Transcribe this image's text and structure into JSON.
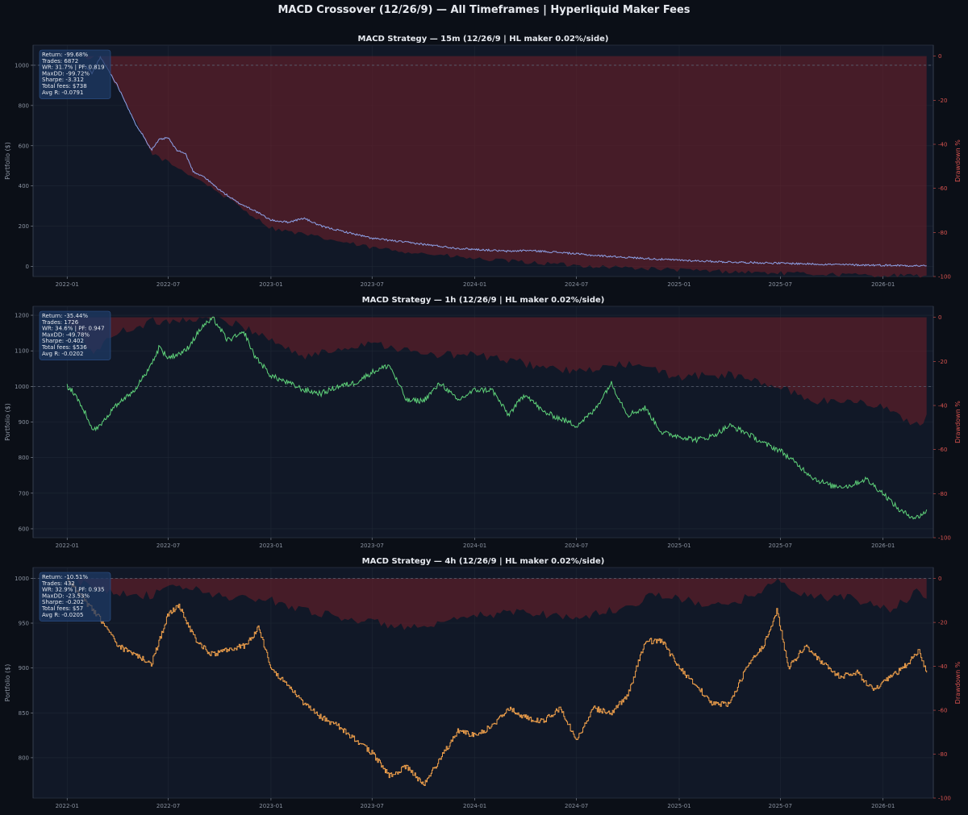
{
  "figure": {
    "title": "MACD Crossover (12/26/9) — All Timeframes | Hyperliquid Maker Fees",
    "background": "#0b0f17",
    "panel_bg": "#111827",
    "drawdown_color": "#6b1f2a"
  },
  "chart_data": [
    {
      "type": "line",
      "title": "MACD Strategy — 15m  (12/26/9 | HL maker 0.02%/side)",
      "ylabel": "Portfolio ($)",
      "ylabel_right": "Drawdown %",
      "ylim": [
        -50,
        1100
      ],
      "ylim_right": [
        -100,
        5
      ],
      "yticks": [
        0,
        200,
        400,
        600,
        800,
        1000
      ],
      "yticks_right": [
        0,
        -20,
        -40,
        -60,
        -80,
        -100
      ],
      "xticks": [
        "2022-01",
        "2022-07",
        "2023-01",
        "2023-07",
        "2024-01",
        "2024-07",
        "2025-01",
        "2025-07",
        "2026-01"
      ],
      "x_range": [
        "2021-11",
        "2026-04"
      ],
      "baseline": 1000,
      "color": "#8ea2e8",
      "series": [
        {
          "x": [
            "2022-02-01",
            "2022-02-15",
            "2022-03-01",
            "2022-03-15",
            "2022-04-01",
            "2022-04-15",
            "2022-05-01",
            "2022-05-15",
            "2022-06-01",
            "2022-06-15",
            "2022-07-01",
            "2022-07-15",
            "2022-08-01",
            "2022-08-15",
            "2022-09-01",
            "2022-10-01",
            "2022-11-01",
            "2022-12-01",
            "2023-01-01",
            "2023-02-01",
            "2023-03-01",
            "2023-04-01",
            "2023-05-01",
            "2023-06-01",
            "2023-07-01",
            "2023-08-01",
            "2023-09-01",
            "2023-10-01",
            "2023-11-01",
            "2023-12-01",
            "2024-01-01",
            "2024-02-01",
            "2024-03-01",
            "2024-04-01",
            "2024-06-01",
            "2024-08-01",
            "2024-10-01",
            "2024-12-01",
            "2025-02-01",
            "2025-04-01",
            "2025-06-01",
            "2025-08-01",
            "2025-10-01",
            "2025-12-01",
            "2026-02-01",
            "2026-03-20"
          ],
          "values": [
            1000,
            960,
            1040,
            980,
            900,
            820,
            720,
            660,
            580,
            630,
            640,
            580,
            560,
            470,
            450,
            380,
            320,
            280,
            230,
            220,
            240,
            200,
            180,
            160,
            140,
            130,
            120,
            110,
            100,
            90,
            85,
            80,
            75,
            80,
            70,
            55,
            45,
            35,
            28,
            22,
            18,
            14,
            10,
            7,
            5,
            3
          ]
        }
      ],
      "drawdown": {
        "x": [
          "2022-02-01",
          "2022-03-01",
          "2022-04-01",
          "2022-06-01",
          "2022-09-01",
          "2023-01-01",
          "2023-07-01",
          "2024-01-01",
          "2024-07-01",
          "2025-01-01",
          "2025-07-01",
          "2026-01-01",
          "2026-03-20"
        ],
        "values": [
          -1,
          0,
          -14,
          -44,
          -57,
          -78,
          -87,
          -92,
          -95,
          -97,
          -98.5,
          -99.5,
          -99.7
        ]
      },
      "stats": [
        "Return: -99.68%",
        "Trades: 6872",
        "WR: 31.7%  |  PF: 0.819",
        "MaxDD: -99.72%",
        "Sharpe: -3.312",
        "Total fees: $738",
        "Avg R: -0.0791"
      ]
    },
    {
      "type": "line",
      "title": "MACD Strategy — 1h  (12/26/9 | HL maker 0.02%/side)",
      "ylabel": "Portfolio ($)",
      "ylabel_right": "Drawdown %",
      "ylim": [
        575,
        1225
      ],
      "ylim_right": [
        -100,
        5
      ],
      "yticks": [
        600,
        700,
        800,
        900,
        1000,
        1100,
        1200
      ],
      "yticks_right": [
        0,
        -20,
        -40,
        -60,
        -80,
        -100
      ],
      "xticks": [
        "2022-01",
        "2022-07",
        "2023-01",
        "2023-07",
        "2024-01",
        "2024-07",
        "2025-01",
        "2025-07",
        "2026-01"
      ],
      "x_range": [
        "2021-11",
        "2026-04"
      ],
      "baseline": 1000,
      "color": "#5fd37a",
      "series": [
        {
          "x": [
            "2022-01-01",
            "2022-01-15",
            "2022-02-01",
            "2022-02-15",
            "2022-03-01",
            "2022-03-15",
            "2022-04-01",
            "2022-05-01",
            "2022-06-01",
            "2022-06-15",
            "2022-07-01",
            "2022-08-01",
            "2022-09-01",
            "2022-09-20",
            "2022-10-15",
            "2022-11-15",
            "2022-12-01",
            "2023-01-01",
            "2023-02-01",
            "2023-03-01",
            "2023-04-01",
            "2023-05-01",
            "2023-06-01",
            "2023-07-01",
            "2023-08-01",
            "2023-09-01",
            "2023-10-01",
            "2023-11-01",
            "2023-12-01",
            "2024-01-01",
            "2024-02-01",
            "2024-03-01",
            "2024-04-01",
            "2024-05-01",
            "2024-06-01",
            "2024-07-01",
            "2024-08-01",
            "2024-09-01",
            "2024-10-01",
            "2024-11-01",
            "2024-12-01",
            "2025-01-01",
            "2025-02-01",
            "2025-03-01",
            "2025-04-01",
            "2025-05-01",
            "2025-06-01",
            "2025-07-01",
            "2025-08-01",
            "2025-09-01",
            "2025-10-01",
            "2025-11-01",
            "2025-12-01",
            "2026-01-01",
            "2026-02-01",
            "2026-03-01",
            "2026-03-20"
          ],
          "values": [
            1000,
            980,
            930,
            880,
            890,
            920,
            950,
            990,
            1060,
            1110,
            1080,
            1100,
            1170,
            1190,
            1130,
            1150,
            1090,
            1030,
            1010,
            990,
            980,
            1000,
            1010,
            1040,
            1060,
            960,
            960,
            1010,
            960,
            990,
            990,
            920,
            980,
            930,
            910,
            890,
            930,
            1010,
            920,
            940,
            870,
            860,
            850,
            860,
            890,
            870,
            840,
            820,
            780,
            740,
            720,
            720,
            740,
            700,
            650,
            630,
            650
          ]
        }
      ],
      "drawdown": {
        "x": [
          "2022-01-01",
          "2022-02-15",
          "2022-04-01",
          "2022-06-01",
          "2022-09-20",
          "2022-12-01",
          "2023-03-01",
          "2023-07-01",
          "2023-10-01",
          "2024-01-01",
          "2024-04-01",
          "2024-07-01",
          "2024-10-01",
          "2025-01-01",
          "2025-04-01",
          "2025-07-01",
          "2025-09-01",
          "2025-11-01",
          "2026-01-01",
          "2026-02-01",
          "2026-03-01",
          "2026-03-20"
        ],
        "values": [
          -2,
          -16,
          -7,
          -2,
          0,
          -6,
          -18,
          -11,
          -17,
          -17,
          -21,
          -25,
          -21,
          -27,
          -26,
          -32,
          -38,
          -38,
          -40,
          -46,
          -48,
          -46
        ]
      },
      "stats": [
        "Return: -35.44%",
        "Trades: 1726",
        "WR: 34.6%  |  PF: 0.947",
        "MaxDD: -49.78%",
        "Sharpe: -0.402",
        "Total fees: $536",
        "Avg R: -0.0202"
      ]
    },
    {
      "type": "line",
      "title": "MACD Strategy — 4h  (12/26/9 | HL maker 0.02%/side)",
      "ylabel": "Portfolio ($)",
      "ylabel_right": "Drawdown %",
      "ylim": [
        755,
        1012
      ],
      "ylim_right": [
        -100,
        5
      ],
      "yticks": [
        800,
        850,
        900,
        950,
        1000
      ],
      "yticks_right": [
        0,
        -20,
        -40,
        -60,
        -80,
        -100
      ],
      "xticks": [
        "2022-01",
        "2022-07",
        "2023-01",
        "2023-07",
        "2024-01",
        "2024-07",
        "2025-01",
        "2025-07",
        "2026-01"
      ],
      "x_range": [
        "2021-11",
        "2026-04"
      ],
      "baseline": 1000,
      "color": "#f0a04b",
      "series": [
        {
          "x": [
            "2022-01-01",
            "2022-02-01",
            "2022-03-01",
            "2022-04-01",
            "2022-05-01",
            "2022-06-01",
            "2022-07-01",
            "2022-07-20",
            "2022-08-15",
            "2022-09-15",
            "2022-10-15",
            "2022-11-15",
            "2022-12-10",
            "2023-01-01",
            "2023-02-01",
            "2023-03-01",
            "2023-04-01",
            "2023-05-01",
            "2023-06-01",
            "2023-07-01",
            "2023-08-01",
            "2023-09-01",
            "2023-10-01",
            "2023-11-01",
            "2023-12-01",
            "2024-01-01",
            "2024-02-01",
            "2024-03-01",
            "2024-04-01",
            "2024-05-01",
            "2024-06-01",
            "2024-07-01",
            "2024-08-01",
            "2024-09-01",
            "2024-10-01",
            "2024-11-01",
            "2024-12-01",
            "2025-01-01",
            "2025-02-01",
            "2025-03-01",
            "2025-04-01",
            "2025-05-01",
            "2025-06-01",
            "2025-06-25",
            "2025-07-15",
            "2025-08-15",
            "2025-09-15",
            "2025-10-15",
            "2025-11-15",
            "2025-12-15",
            "2026-01-15",
            "2026-02-15",
            "2026-03-05",
            "2026-03-20"
          ],
          "values": [
            1000,
            975,
            955,
            925,
            915,
            905,
            960,
            970,
            935,
            915,
            920,
            925,
            945,
            900,
            880,
            860,
            845,
            835,
            820,
            805,
            780,
            790,
            770,
            800,
            830,
            825,
            835,
            855,
            845,
            840,
            855,
            820,
            855,
            850,
            870,
            930,
            930,
            900,
            880,
            860,
            860,
            900,
            925,
            965,
            900,
            925,
            905,
            890,
            895,
            875,
            890,
            905,
            920,
            895
          ]
        }
      ],
      "drawdown": {
        "x": [
          "2022-01-01",
          "2022-03-01",
          "2022-06-01",
          "2022-07-15",
          "2022-10-01",
          "2023-01-01",
          "2023-04-01",
          "2023-07-01",
          "2023-10-01",
          "2024-01-01",
          "2024-04-01",
          "2024-07-01",
          "2024-10-01",
          "2024-11-15",
          "2025-02-01",
          "2025-04-01",
          "2025-06-25",
          "2025-08-15",
          "2025-11-01",
          "2026-01-15",
          "2026-03-05",
          "2026-03-20"
        ],
        "values": [
          0,
          -5,
          -8,
          -3,
          -8,
          -10,
          -16,
          -20,
          -23,
          -17,
          -15,
          -18,
          -13,
          -7,
          -11,
          -13,
          -1,
          -8,
          -9,
          -14,
          -6,
          -10
        ]
      },
      "stats": [
        "Return: -10.51%",
        "Trades: 432",
        "WR: 32.9%  |  PF: 0.935",
        "MaxDD: -23.53%",
        "Sharpe: -0.202",
        "Total fees: $57",
        "Avg R: -0.0205"
      ]
    }
  ]
}
